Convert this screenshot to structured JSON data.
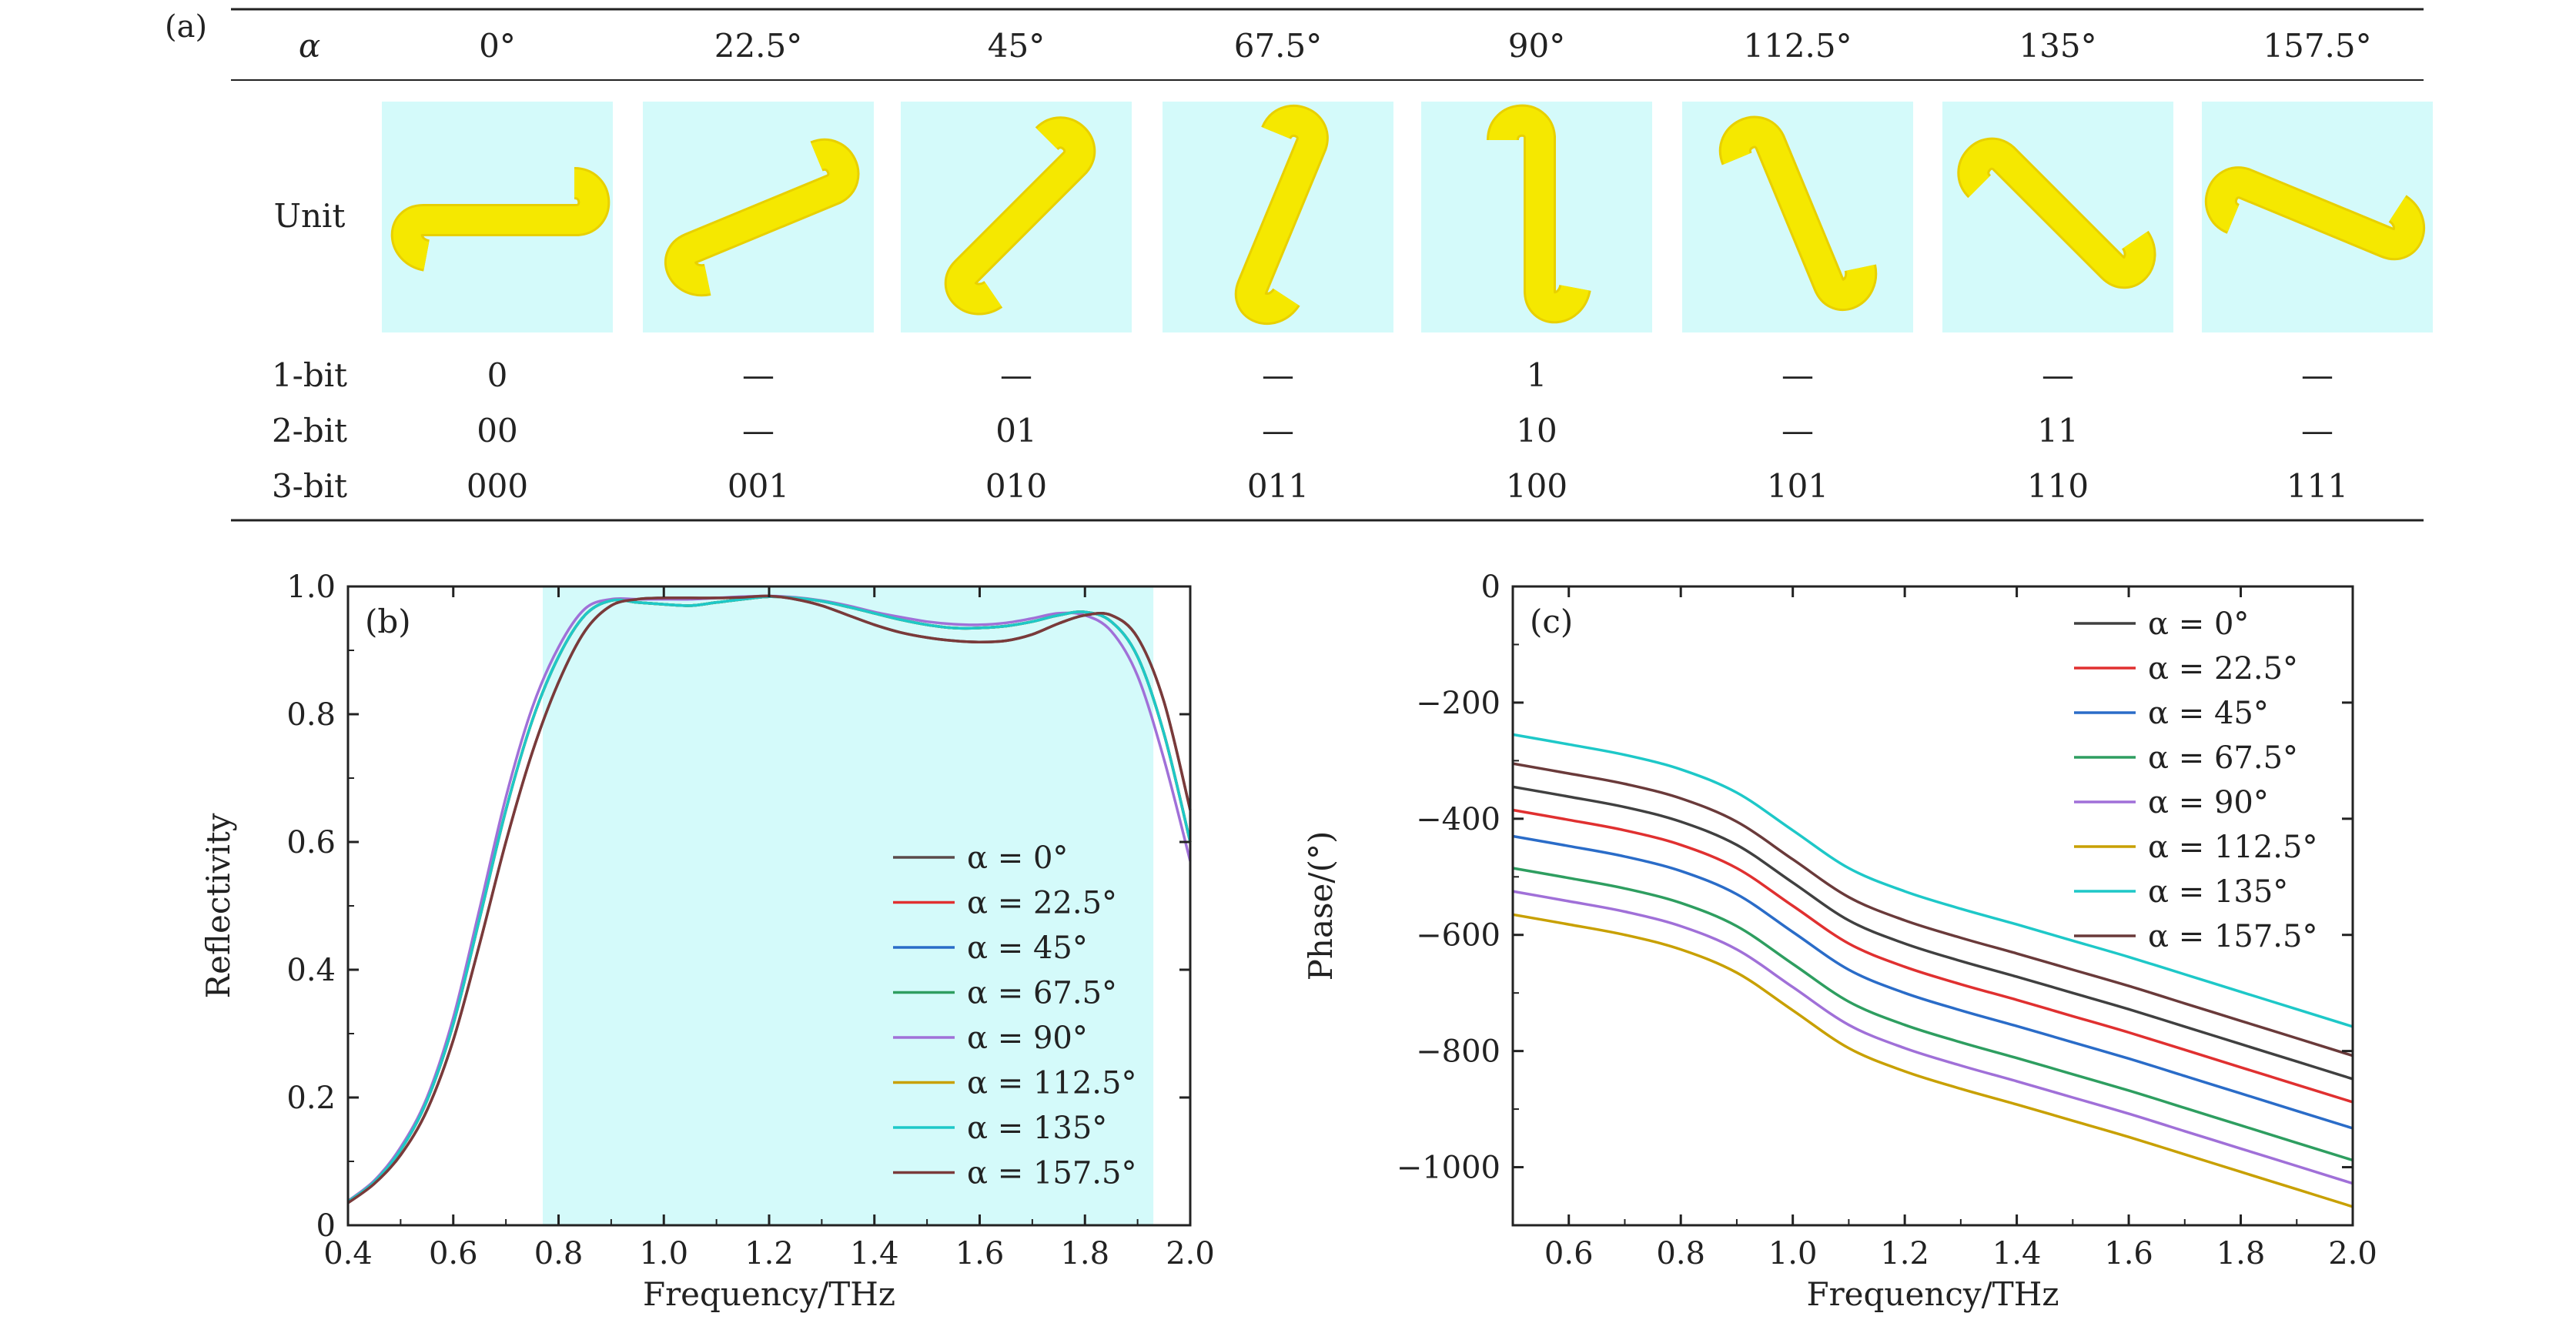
{
  "panel_a": {
    "label": "(a)",
    "header_label": "α",
    "angles": [
      "0°",
      "22.5°",
      "45°",
      "67.5°",
      "90°",
      "112.5°",
      "135°",
      "157.5°"
    ],
    "unit_row_label": "Unit",
    "rows": [
      {
        "label": "1-bit",
        "values": [
          "0",
          "—",
          "—",
          "—",
          "1",
          "—",
          "—",
          "—"
        ]
      },
      {
        "label": "2-bit",
        "values": [
          "00",
          "—",
          "01",
          "—",
          "10",
          "—",
          "11",
          "—"
        ]
      },
      {
        "label": "3-bit",
        "values": [
          "000",
          "001",
          "010",
          "011",
          "100",
          "101",
          "110",
          "111"
        ]
      }
    ],
    "unit_angles_deg": [
      0,
      22.5,
      45,
      67.5,
      90,
      112.5,
      135,
      157.5
    ],
    "unit_bg_color": "#d4fafa",
    "unit_shape_color": "#f5e800"
  },
  "chart_data": [
    {
      "type": "line",
      "panel_label": "(b)",
      "xlabel": "Frequency/THz",
      "ylabel": "Reflectivity",
      "xlim": [
        0.4,
        2.0
      ],
      "ylim": [
        0,
        1.0
      ],
      "xticks": [
        "0.4",
        "0.6",
        "0.8",
        "1.0",
        "1.2",
        "1.4",
        "1.6",
        "1.8",
        "2.0"
      ],
      "yticks": [
        "0",
        "0.2",
        "0.4",
        "0.6",
        "0.8",
        "1.0"
      ],
      "band": {
        "x_start": 0.77,
        "x_end": 1.93,
        "color": "#d4fafa"
      },
      "legend_position": "bottom-right",
      "x": [
        0.4,
        0.45,
        0.5,
        0.55,
        0.6,
        0.65,
        0.7,
        0.75,
        0.8,
        0.85,
        0.9,
        0.95,
        1.0,
        1.05,
        1.1,
        1.15,
        1.2,
        1.25,
        1.3,
        1.35,
        1.4,
        1.45,
        1.5,
        1.55,
        1.6,
        1.65,
        1.7,
        1.75,
        1.8,
        1.85,
        1.9,
        1.95,
        2.0
      ],
      "series": [
        {
          "name": "α = 0°",
          "color": "#5a4a4a",
          "values": [
            0.035,
            0.065,
            0.11,
            0.18,
            0.29,
            0.44,
            0.6,
            0.74,
            0.85,
            0.93,
            0.97,
            0.98,
            0.982,
            0.982,
            0.982,
            0.983,
            0.985,
            0.98,
            0.97,
            0.955,
            0.94,
            0.928,
            0.92,
            0.915,
            0.913,
            0.915,
            0.925,
            0.942,
            0.955,
            0.955,
            0.92,
            0.82,
            0.65
          ]
        },
        {
          "name": "α = 22.5°",
          "color": "#e03030",
          "values": [
            0.037,
            0.068,
            0.118,
            0.195,
            0.315,
            0.48,
            0.65,
            0.79,
            0.89,
            0.955,
            0.978,
            0.975,
            0.972,
            0.97,
            0.975,
            0.98,
            0.984,
            0.982,
            0.977,
            0.968,
            0.958,
            0.948,
            0.94,
            0.935,
            0.935,
            0.938,
            0.945,
            0.955,
            0.96,
            0.945,
            0.89,
            0.77,
            0.6
          ]
        },
        {
          "name": "α = 45°",
          "color": "#2a6cc8",
          "values": [
            0.037,
            0.068,
            0.118,
            0.195,
            0.315,
            0.48,
            0.65,
            0.79,
            0.89,
            0.955,
            0.978,
            0.975,
            0.972,
            0.97,
            0.975,
            0.98,
            0.984,
            0.982,
            0.977,
            0.968,
            0.958,
            0.948,
            0.94,
            0.935,
            0.935,
            0.938,
            0.945,
            0.955,
            0.96,
            0.945,
            0.89,
            0.77,
            0.6
          ]
        },
        {
          "name": "α = 67.5°",
          "color": "#2e9e60",
          "values": [
            0.037,
            0.068,
            0.118,
            0.195,
            0.315,
            0.48,
            0.65,
            0.79,
            0.89,
            0.955,
            0.978,
            0.975,
            0.972,
            0.97,
            0.975,
            0.98,
            0.984,
            0.982,
            0.977,
            0.968,
            0.958,
            0.948,
            0.94,
            0.935,
            0.935,
            0.938,
            0.945,
            0.955,
            0.96,
            0.945,
            0.89,
            0.77,
            0.6
          ]
        },
        {
          "name": "α = 90°",
          "color": "#a070d8",
          "values": [
            0.038,
            0.07,
            0.122,
            0.2,
            0.325,
            0.495,
            0.67,
            0.81,
            0.905,
            0.965,
            0.98,
            0.98,
            0.98,
            0.98,
            0.982,
            0.984,
            0.985,
            0.983,
            0.978,
            0.97,
            0.96,
            0.952,
            0.945,
            0.941,
            0.94,
            0.943,
            0.95,
            0.958,
            0.955,
            0.93,
            0.86,
            0.73,
            0.57
          ]
        },
        {
          "name": "α = 112.5°",
          "color": "#c8a000",
          "values": [
            0.037,
            0.068,
            0.118,
            0.195,
            0.315,
            0.48,
            0.65,
            0.79,
            0.89,
            0.955,
            0.978,
            0.975,
            0.972,
            0.97,
            0.975,
            0.98,
            0.984,
            0.982,
            0.977,
            0.968,
            0.958,
            0.948,
            0.94,
            0.935,
            0.935,
            0.938,
            0.945,
            0.955,
            0.96,
            0.945,
            0.89,
            0.77,
            0.6
          ]
        },
        {
          "name": "α = 135°",
          "color": "#1ec8c8",
          "values": [
            0.037,
            0.068,
            0.118,
            0.195,
            0.315,
            0.48,
            0.65,
            0.79,
            0.89,
            0.955,
            0.978,
            0.975,
            0.972,
            0.97,
            0.975,
            0.98,
            0.984,
            0.982,
            0.977,
            0.968,
            0.958,
            0.948,
            0.94,
            0.935,
            0.935,
            0.938,
            0.945,
            0.955,
            0.96,
            0.945,
            0.89,
            0.77,
            0.6
          ]
        },
        {
          "name": "α = 157.5°",
          "color": "#7a3a3a",
          "values": [
            0.035,
            0.065,
            0.11,
            0.18,
            0.29,
            0.44,
            0.6,
            0.74,
            0.85,
            0.93,
            0.97,
            0.98,
            0.982,
            0.982,
            0.982,
            0.983,
            0.985,
            0.98,
            0.97,
            0.955,
            0.94,
            0.928,
            0.92,
            0.915,
            0.913,
            0.915,
            0.925,
            0.942,
            0.955,
            0.955,
            0.92,
            0.82,
            0.65
          ]
        }
      ]
    },
    {
      "type": "line",
      "panel_label": "(c)",
      "xlabel": "Frequency/THz",
      "ylabel": "Phase/(°)",
      "xlim": [
        0.5,
        2.0
      ],
      "ylim": [
        -1100,
        0
      ],
      "xticks": [
        "0.6",
        "0.8",
        "1.0",
        "1.2",
        "1.4",
        "1.6",
        "1.8",
        "2.0"
      ],
      "yticks": [
        "0",
        "−200",
        "−400",
        "−600",
        "−800",
        "−1000"
      ],
      "legend_position": "top-right",
      "x": [
        0.5,
        0.6,
        0.7,
        0.8,
        0.9,
        1.0,
        1.1,
        1.2,
        1.3,
        1.4,
        1.5,
        1.6,
        1.7,
        1.8,
        1.9,
        2.0
      ],
      "series": [
        {
          "name": "α = 0°",
          "color": "#404040",
          "values": [
            -345,
            -362,
            -380,
            -405,
            -445,
            -510,
            -575,
            -615,
            -645,
            -672,
            -700,
            -728,
            -758,
            -788,
            -818,
            -848
          ]
        },
        {
          "name": "α = 22.5°",
          "color": "#e03030",
          "values": [
            -385,
            -402,
            -420,
            -445,
            -485,
            -550,
            -615,
            -655,
            -685,
            -712,
            -740,
            -768,
            -798,
            -828,
            -858,
            -888
          ]
        },
        {
          "name": "α = 45°",
          "color": "#2a6cc8",
          "values": [
            -430,
            -447,
            -465,
            -490,
            -530,
            -595,
            -660,
            -700,
            -730,
            -757,
            -785,
            -813,
            -843,
            -873,
            -903,
            -933
          ]
        },
        {
          "name": "α = 67.5°",
          "color": "#2e9e60",
          "values": [
            -485,
            -502,
            -520,
            -545,
            -585,
            -650,
            -715,
            -755,
            -785,
            -812,
            -840,
            -868,
            -898,
            -928,
            -958,
            -988
          ]
        },
        {
          "name": "α = 90°",
          "color": "#a070d8",
          "values": [
            -525,
            -542,
            -560,
            -585,
            -625,
            -690,
            -755,
            -795,
            -825,
            -852,
            -880,
            -908,
            -938,
            -968,
            -998,
            -1028
          ]
        },
        {
          "name": "α = 112.5°",
          "color": "#c8a000",
          "values": [
            -565,
            -582,
            -600,
            -625,
            -665,
            -730,
            -795,
            -835,
            -865,
            -892,
            -920,
            -948,
            -978,
            -1008,
            -1038,
            -1068
          ]
        },
        {
          "name": "α = 135°",
          "color": "#1ec8c8",
          "values": [
            -255,
            -272,
            -290,
            -315,
            -355,
            -420,
            -485,
            -525,
            -555,
            -582,
            -610,
            -638,
            -668,
            -698,
            -728,
            -758
          ]
        },
        {
          "name": "α = 157.5°",
          "color": "#6a3a3a",
          "values": [
            -305,
            -322,
            -340,
            -365,
            -405,
            -470,
            -535,
            -575,
            -605,
            -632,
            -660,
            -688,
            -718,
            -748,
            -778,
            -808
          ]
        }
      ]
    }
  ]
}
